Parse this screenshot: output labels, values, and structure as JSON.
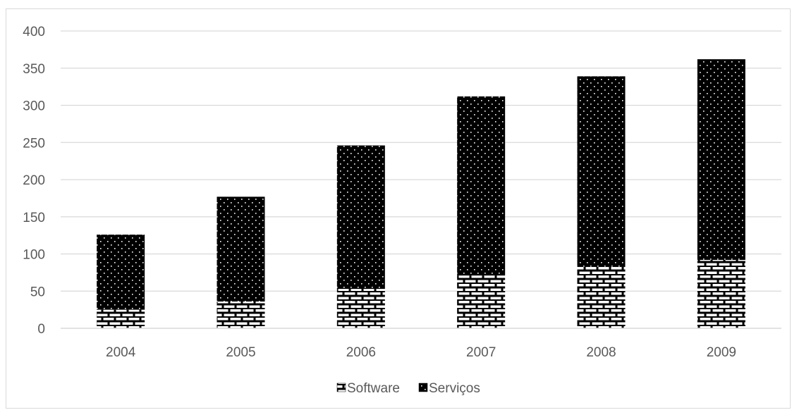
{
  "chart_data": {
    "type": "bar",
    "stacked": true,
    "categories": [
      "2004",
      "2005",
      "2006",
      "2007",
      "2008",
      "2009"
    ],
    "series": [
      {
        "name": "Software",
        "values": [
          25,
          36,
          53,
          71,
          83,
          92
        ],
        "pattern": "brick",
        "color": "#000000"
      },
      {
        "name": "Serviços",
        "values": [
          101,
          141,
          193,
          241,
          256,
          270
        ],
        "pattern": "dots",
        "color": "#000000"
      }
    ],
    "ylim": [
      0,
      400
    ],
    "yticks": [
      "0",
      "50",
      "100",
      "150",
      "200",
      "250",
      "300",
      "350",
      "400"
    ],
    "grid": true,
    "legend_position": "bottom",
    "title": "",
    "xlabel": "",
    "ylabel": ""
  }
}
